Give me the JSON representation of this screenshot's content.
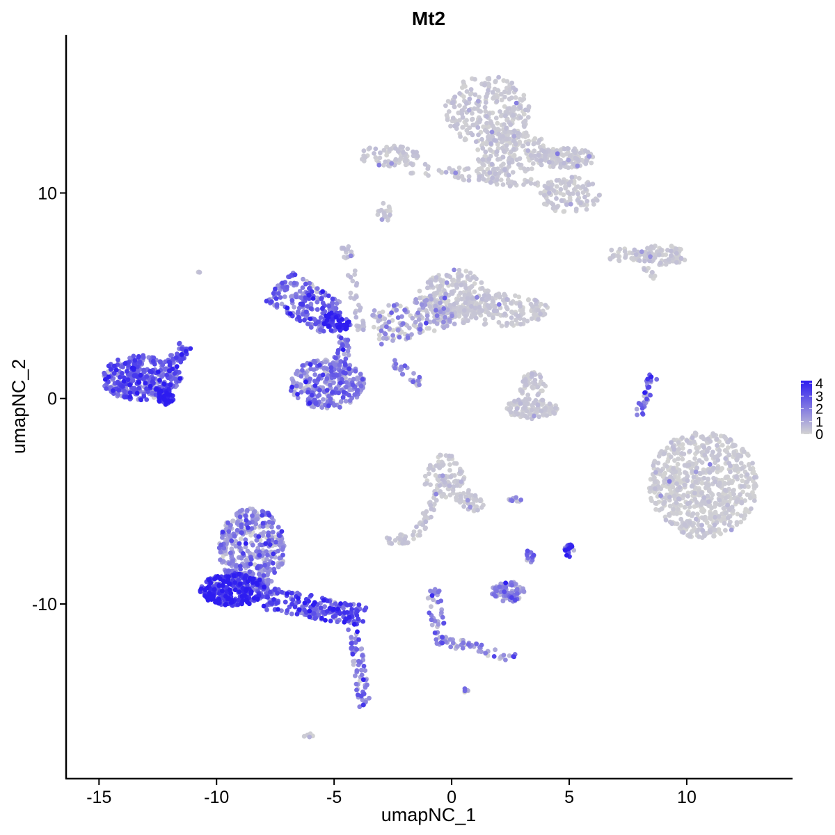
{
  "chart_data": {
    "type": "scatter",
    "title": "Mt2",
    "xlabel": "umapNC_1",
    "ylabel": "umapNC_2",
    "xlim": [
      -16.4,
      14.5
    ],
    "ylim": [
      -18.5,
      17.7
    ],
    "xticks": [
      -15,
      -10,
      -5,
      0,
      5,
      10
    ],
    "xtick_labels": [
      "-15",
      "-10",
      "-5",
      "0",
      "5",
      "10"
    ],
    "yticks": [
      -10,
      0,
      10
    ],
    "ytick_labels": [
      "-10",
      "0",
      "10"
    ],
    "grid": false,
    "color_scale": {
      "min_value": 0,
      "max_value": 4,
      "low_color": "#d3d3d3",
      "high_color": "#2d1cf0",
      "ticks": [
        0,
        1,
        2,
        3,
        4
      ],
      "tick_labels": [
        "0",
        "1",
        "2",
        "3",
        "4"
      ],
      "legend_position": "right"
    },
    "clusters": [
      {
        "id": "c1",
        "shape": "ellipse",
        "cx": 1.5,
        "cy": 14.0,
        "rx": 1.8,
        "ry": 1.7,
        "n": 260,
        "expr": 0.05
      },
      {
        "id": "c2",
        "shape": "ellipse",
        "cx": 2.6,
        "cy": 12.0,
        "rx": 1.6,
        "ry": 1.0,
        "n": 160,
        "expr": 0.05
      },
      {
        "id": "c3",
        "shape": "ellipse",
        "cx": 4.8,
        "cy": 11.7,
        "rx": 1.3,
        "ry": 0.5,
        "n": 120,
        "expr": 0.05
      },
      {
        "id": "c4",
        "shape": "ellipse",
        "cx": 5.0,
        "cy": 9.9,
        "rx": 1.3,
        "ry": 0.9,
        "n": 110,
        "expr": 0.05
      },
      {
        "id": "c5",
        "shape": "ellipse",
        "cx": -2.7,
        "cy": 11.8,
        "rx": 1.3,
        "ry": 0.5,
        "n": 70,
        "expr": 0.05
      },
      {
        "id": "c6",
        "shape": "line",
        "x1": -2.0,
        "y1": 11.2,
        "x2": 2.6,
        "y2": 10.8,
        "width": 0.3,
        "n": 60,
        "expr": 0.05
      },
      {
        "id": "c7",
        "shape": "line",
        "x1": 0.5,
        "y1": 10.9,
        "x2": 3.7,
        "y2": 10.4,
        "width": 0.3,
        "n": 35,
        "expr": 0.05
      },
      {
        "id": "c8",
        "shape": "ellipse",
        "cx": -2.9,
        "cy": 8.9,
        "rx": 0.3,
        "ry": 0.3,
        "n": 10,
        "expr": 0.05
      },
      {
        "id": "c9",
        "shape": "line",
        "x1": 6.7,
        "y1": 7.0,
        "x2": 10.1,
        "y2": 6.9,
        "width": 0.3,
        "n": 70,
        "expr": 0.05
      },
      {
        "id": "c10",
        "shape": "ellipse",
        "cx": 9.0,
        "cy": 7.0,
        "rx": 0.9,
        "ry": 0.5,
        "n": 45,
        "expr": 0.05
      },
      {
        "id": "c11",
        "shape": "line",
        "x1": 8.1,
        "y1": 6.4,
        "x2": 8.7,
        "y2": 6.0,
        "width": 0.2,
        "n": 10,
        "expr": 0.05
      },
      {
        "id": "c12",
        "shape": "ellipse",
        "cx": 0.1,
        "cy": 5.0,
        "rx": 1.5,
        "ry": 1.3,
        "n": 210,
        "expr": 0.05
      },
      {
        "id": "c13",
        "shape": "ellipse",
        "cx": 1.9,
        "cy": 4.3,
        "rx": 2.2,
        "ry": 0.8,
        "n": 190,
        "expr": 0.05
      },
      {
        "id": "c14",
        "shape": "line",
        "x1": -3.3,
        "y1": 3.4,
        "x2": 0.0,
        "y2": 4.4,
        "width": 0.9,
        "n": 170,
        "expr": 0.15
      },
      {
        "id": "c15",
        "shape": "line",
        "x1": -4.5,
        "y1": 7.5,
        "x2": -3.8,
        "y2": 2.8,
        "width": 0.2,
        "n": 45,
        "expr": 0.1
      },
      {
        "id": "c16",
        "shape": "line",
        "x1": -7.4,
        "y1": 5.5,
        "x2": -5.0,
        "y2": 3.8,
        "width": 0.9,
        "n": 190,
        "expr": 0.55
      },
      {
        "id": "c17",
        "shape": "ellipse",
        "cx": -4.9,
        "cy": 3.7,
        "rx": 0.6,
        "ry": 0.5,
        "n": 70,
        "expr": 0.8
      },
      {
        "id": "c18",
        "shape": "line",
        "x1": -4.5,
        "y1": 3.0,
        "x2": -4.8,
        "y2": 1.5,
        "width": 0.3,
        "n": 35,
        "expr": 0.5
      },
      {
        "id": "c19",
        "shape": "ellipse",
        "cx": -5.3,
        "cy": 0.7,
        "rx": 1.6,
        "ry": 1.2,
        "n": 300,
        "expr": 0.4
      },
      {
        "id": "c20",
        "shape": "line",
        "x1": -2.5,
        "y1": 1.8,
        "x2": -1.3,
        "y2": 0.7,
        "width": 0.2,
        "n": 25,
        "expr": 0.4
      },
      {
        "id": "c21",
        "shape": "ellipse",
        "cx": -13.2,
        "cy": 1.0,
        "rx": 1.7,
        "ry": 1.1,
        "n": 360,
        "expr": 0.6
      },
      {
        "id": "c22",
        "shape": "line",
        "x1": -12.0,
        "y1": 1.6,
        "x2": -11.3,
        "y2": 2.6,
        "width": 0.3,
        "n": 40,
        "expr": 0.6
      },
      {
        "id": "c23",
        "shape": "ellipse",
        "cx": -12.2,
        "cy": 0.1,
        "rx": 0.4,
        "ry": 0.4,
        "n": 40,
        "expr": 0.9
      },
      {
        "id": "c24",
        "shape": "ellipse",
        "cx": 3.4,
        "cy": -0.5,
        "rx": 1.1,
        "ry": 0.5,
        "n": 110,
        "expr": 0.05
      },
      {
        "id": "c25",
        "shape": "ellipse",
        "cx": 3.4,
        "cy": 0.7,
        "rx": 0.6,
        "ry": 0.6,
        "n": 45,
        "expr": 0.05
      },
      {
        "id": "c26",
        "shape": "line",
        "x1": 8.6,
        "y1": 1.2,
        "x2": 7.9,
        "y2": -0.9,
        "width": 0.2,
        "n": 35,
        "expr": 0.45
      },
      {
        "id": "c27",
        "shape": "ellipse",
        "cx": 10.7,
        "cy": -4.2,
        "rx": 2.3,
        "ry": 2.6,
        "n": 700,
        "expr": 0.03
      },
      {
        "id": "c28",
        "shape": "ellipse",
        "cx": -0.3,
        "cy": -3.8,
        "rx": 0.9,
        "ry": 1.1,
        "n": 90,
        "expr": 0.05
      },
      {
        "id": "c29",
        "shape": "line",
        "x1": 0.4,
        "y1": -4.6,
        "x2": 1.2,
        "y2": -5.4,
        "width": 0.4,
        "n": 50,
        "expr": 0.05
      },
      {
        "id": "c30",
        "shape": "line",
        "x1": -0.5,
        "y1": -4.5,
        "x2": -1.6,
        "y2": -6.9,
        "width": 0.2,
        "n": 35,
        "expr": 0.05
      },
      {
        "id": "c31",
        "shape": "ellipse",
        "cx": -2.3,
        "cy": -6.9,
        "rx": 0.5,
        "ry": 0.3,
        "n": 25,
        "expr": 0.05
      },
      {
        "id": "c32",
        "shape": "ellipse",
        "cx": 2.7,
        "cy": -4.9,
        "rx": 0.3,
        "ry": 0.15,
        "n": 12,
        "expr": 0.3
      },
      {
        "id": "c33",
        "shape": "ellipse",
        "cx": 5.0,
        "cy": -7.4,
        "rx": 0.2,
        "ry": 0.3,
        "n": 25,
        "expr": 0.75
      },
      {
        "id": "c34",
        "shape": "ellipse",
        "cx": 2.4,
        "cy": -9.4,
        "rx": 0.7,
        "ry": 0.5,
        "n": 90,
        "expr": 0.35
      },
      {
        "id": "c35",
        "shape": "ellipse",
        "cx": 3.3,
        "cy": -7.7,
        "rx": 0.2,
        "ry": 0.3,
        "n": 12,
        "expr": 0.45
      },
      {
        "id": "c36",
        "shape": "line",
        "x1": -0.8,
        "y1": -9.3,
        "x2": -0.5,
        "y2": -12.0,
        "width": 0.3,
        "n": 45,
        "expr": 0.35
      },
      {
        "id": "c37",
        "shape": "line",
        "x1": -0.5,
        "y1": -11.7,
        "x2": 2.7,
        "y2": -12.7,
        "width": 0.25,
        "n": 50,
        "expr": 0.35
      },
      {
        "id": "c38",
        "shape": "ellipse",
        "cx": 0.6,
        "cy": -14.2,
        "rx": 0.15,
        "ry": 0.1,
        "n": 5,
        "expr": 0.2
      },
      {
        "id": "c39",
        "shape": "ellipse",
        "cx": -8.5,
        "cy": -7.3,
        "rx": 1.4,
        "ry": 2.0,
        "n": 400,
        "expr": 0.35
      },
      {
        "id": "c40",
        "shape": "ellipse",
        "cx": -9.3,
        "cy": -9.3,
        "rx": 1.4,
        "ry": 0.8,
        "n": 320,
        "expr": 0.8
      },
      {
        "id": "c41",
        "shape": "line",
        "x1": -8.0,
        "y1": -9.7,
        "x2": -3.7,
        "y2": -10.6,
        "width": 0.55,
        "n": 210,
        "expr": 0.65
      },
      {
        "id": "c42",
        "shape": "line",
        "x1": -4.2,
        "y1": -11.0,
        "x2": -3.7,
        "y2": -15.0,
        "width": 0.25,
        "n": 65,
        "expr": 0.45
      },
      {
        "id": "c43",
        "shape": "ellipse",
        "cx": -6.1,
        "cy": -16.4,
        "rx": 0.2,
        "ry": 0.1,
        "n": 6,
        "expr": 0.05
      },
      {
        "id": "c44",
        "shape": "ellipse",
        "cx": -10.7,
        "cy": 6.1,
        "rx": 0.1,
        "ry": 0.1,
        "n": 3,
        "expr": 0.05
      },
      {
        "id": "c45",
        "shape": "ellipse",
        "cx": -2.9,
        "cy": 9.1,
        "rx": 0.3,
        "ry": 0.4,
        "n": 12,
        "expr": 0.05
      }
    ]
  }
}
